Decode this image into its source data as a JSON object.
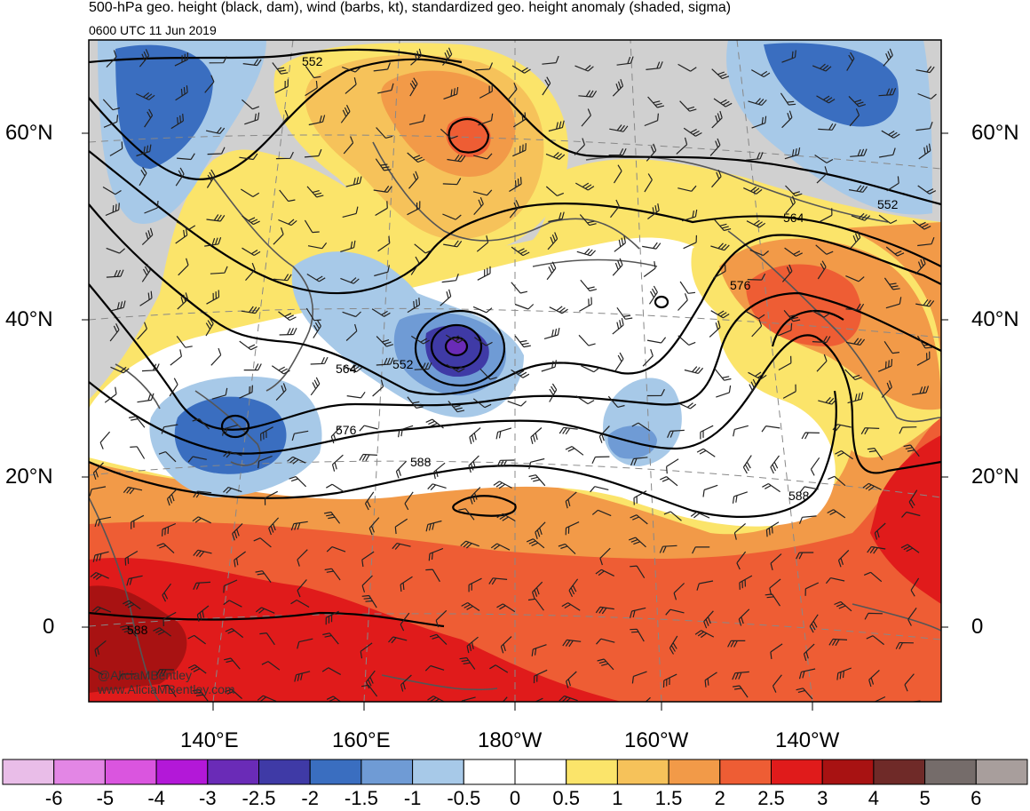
{
  "title": {
    "line1": "500-hPa geo. height (black, dam), wind (barbs, kt), standardized geo. height anomaly (shaded, sigma)",
    "line2": "0600 UTC 11 Jun 2019"
  },
  "lat_labels": [
    "60°N",
    "40°N",
    "20°N",
    "0"
  ],
  "lon_labels": [
    "140°E",
    "160°E",
    "180°W",
    "160°W",
    "140°W"
  ],
  "contour_labels": [
    "552",
    "552",
    "564",
    "552",
    "576",
    "588",
    "564",
    "576",
    "588",
    "588"
  ],
  "credit": {
    "line1": "@AliciaMBentley",
    "line2": "www.AliciaMBentley.com"
  },
  "colorbar": {
    "labels": [
      "-6",
      "-5",
      "-4",
      "-3",
      "-2.5",
      "-2",
      "-1.5",
      "-1",
      "-0.5",
      "0",
      "0.5",
      "1",
      "1.5",
      "2",
      "2.5",
      "3",
      "4",
      "5",
      "6"
    ],
    "colors": [
      "#e9bde8",
      "#e386e5",
      "#da55df",
      "#b318d8",
      "#6a2bb7",
      "#3f3aa6",
      "#3a6ec0",
      "#6f9bd5",
      "#a7c9e8",
      "#ffffff",
      "#ffffff",
      "#fbe46a",
      "#f6c25a",
      "#f29a48",
      "#ee5d34",
      "#e01b1b",
      "#a81212",
      "#6f2a28",
      "#756c6a",
      "#a89e9c"
    ]
  },
  "colors": {
    "land_gray": "#d0d0d0",
    "coast": "#555555"
  }
}
